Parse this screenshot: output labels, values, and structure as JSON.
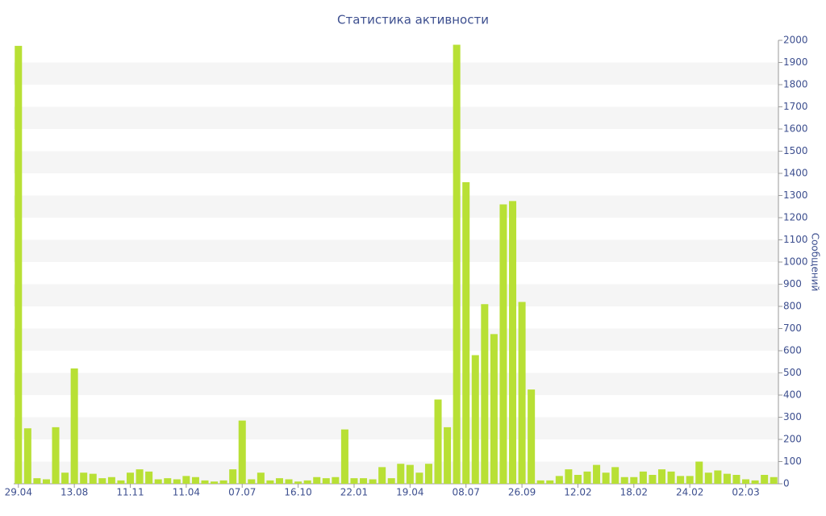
{
  "chart_data": {
    "type": "bar",
    "title": "Статистика активности",
    "y_axis_label": "Сообщений",
    "categories": [
      "29.04",
      null,
      null,
      null,
      null,
      null,
      "13.08",
      null,
      null,
      null,
      null,
      null,
      "11.11",
      null,
      null,
      null,
      null,
      null,
      "11.04",
      null,
      null,
      null,
      null,
      null,
      "07.07",
      null,
      null,
      null,
      null,
      null,
      "16.10",
      null,
      null,
      null,
      null,
      null,
      "22.01",
      null,
      null,
      null,
      null,
      null,
      "19.04",
      null,
      null,
      null,
      null,
      null,
      "08.07",
      null,
      null,
      null,
      null,
      null,
      "26.09",
      null,
      null,
      null,
      null,
      null,
      "12.02",
      null,
      null,
      null,
      null,
      null,
      "18.02",
      null,
      null,
      null,
      null,
      null,
      "24.02",
      null,
      null,
      null,
      null,
      null,
      "02.03",
      null,
      null,
      null
    ],
    "values": [
      1975,
      250,
      25,
      20,
      255,
      50,
      520,
      50,
      45,
      25,
      30,
      15,
      50,
      65,
      55,
      20,
      25,
      20,
      35,
      30,
      15,
      10,
      15,
      65,
      285,
      20,
      50,
      15,
      25,
      20,
      10,
      15,
      30,
      25,
      30,
      245,
      25,
      25,
      20,
      75,
      25,
      90,
      85,
      50,
      90,
      380,
      255,
      1980,
      1360,
      580,
      810,
      675,
      1260,
      1275,
      820,
      425,
      15,
      15,
      35,
      65,
      40,
      55,
      85,
      50,
      75,
      30,
      30,
      55,
      40,
      65,
      55,
      35,
      35,
      100,
      50,
      60,
      45,
      40,
      20,
      15,
      40,
      30
    ],
    "color": "#b8e035",
    "ylim": [
      0,
      2000
    ],
    "yticks": [
      0,
      100,
      200,
      300,
      400,
      500,
      600,
      700,
      800,
      900,
      1000,
      1100,
      1200,
      1300,
      1400,
      1500,
      1600,
      1700,
      1800,
      1900,
      2000
    ],
    "y_axis_side": "right",
    "grid": "bands"
  }
}
